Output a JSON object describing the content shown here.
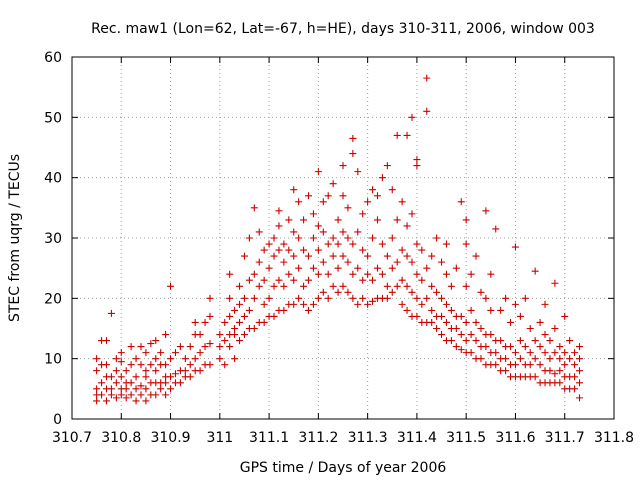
{
  "chart_data": {
    "type": "scatter",
    "title": "Rec. maw1 (Lon=62, Lat=-67, h=HE), days 310-311, 2006, window 003",
    "xlabel": "GPS time / Days of year 2006",
    "ylabel": "STEC from uqrg / TECUs",
    "xlim": [
      310.7,
      311.8
    ],
    "ylim": [
      0,
      60
    ],
    "xticks": [
      "310.7",
      "310.8",
      "310.9",
      "311",
      "311.1",
      "311.2",
      "311.3",
      "311.4",
      "311.5",
      "311.6",
      "311.7",
      "311.8"
    ],
    "yticks": [
      "0",
      "10",
      "20",
      "30",
      "40",
      "50",
      "60"
    ],
    "grid": true,
    "marker": "plus",
    "color": "#cc0000",
    "points": [
      [
        310.75,
        3
      ],
      [
        310.75,
        4
      ],
      [
        310.75,
        5
      ],
      [
        310.75,
        8
      ],
      [
        310.75,
        10
      ],
      [
        310.76,
        4
      ],
      [
        310.76,
        6
      ],
      [
        310.76,
        9
      ],
      [
        310.76,
        13
      ],
      [
        310.77,
        3
      ],
      [
        310.77,
        5
      ],
      [
        310.77,
        7
      ],
      [
        310.77,
        9
      ],
      [
        310.77,
        13
      ],
      [
        310.78,
        4
      ],
      [
        310.78,
        5
      ],
      [
        310.78,
        7
      ],
      [
        310.78,
        17.5
      ],
      [
        310.79,
        3.5
      ],
      [
        310.79,
        6
      ],
      [
        310.79,
        8
      ],
      [
        310.79,
        10
      ],
      [
        310.8,
        4
      ],
      [
        310.8,
        5
      ],
      [
        310.8,
        7
      ],
      [
        310.8,
        9.5
      ],
      [
        310.8,
        11
      ],
      [
        310.81,
        3.5
      ],
      [
        310.81,
        5
      ],
      [
        310.81,
        6
      ],
      [
        310.81,
        8
      ],
      [
        310.82,
        4
      ],
      [
        310.82,
        6
      ],
      [
        310.82,
        9
      ],
      [
        310.82,
        12
      ],
      [
        310.83,
        3
      ],
      [
        310.83,
        5
      ],
      [
        310.83,
        7
      ],
      [
        310.83,
        10
      ],
      [
        310.84,
        4
      ],
      [
        310.84,
        5.5
      ],
      [
        310.84,
        9
      ],
      [
        310.84,
        12
      ],
      [
        310.85,
        3
      ],
      [
        310.85,
        5
      ],
      [
        310.85,
        7
      ],
      [
        310.85,
        8
      ],
      [
        310.85,
        11
      ],
      [
        310.86,
        4
      ],
      [
        310.86,
        6
      ],
      [
        310.86,
        9
      ],
      [
        310.86,
        12.5
      ],
      [
        310.87,
        4
      ],
      [
        310.87,
        6
      ],
      [
        310.87,
        8
      ],
      [
        310.87,
        10
      ],
      [
        310.87,
        13
      ],
      [
        310.88,
        5
      ],
      [
        310.88,
        6
      ],
      [
        310.88,
        9
      ],
      [
        310.88,
        11
      ],
      [
        310.89,
        4
      ],
      [
        310.89,
        6
      ],
      [
        310.89,
        7
      ],
      [
        310.89,
        9
      ],
      [
        310.89,
        14
      ],
      [
        310.9,
        5
      ],
      [
        310.9,
        7
      ],
      [
        310.9,
        10
      ],
      [
        310.9,
        22
      ],
      [
        310.91,
        6
      ],
      [
        310.91,
        7.5
      ],
      [
        310.91,
        11
      ],
      [
        310.92,
        6
      ],
      [
        310.92,
        8
      ],
      [
        310.92,
        12
      ],
      [
        310.93,
        7
      ],
      [
        310.93,
        8
      ],
      [
        310.93,
        10
      ],
      [
        310.94,
        7
      ],
      [
        310.94,
        9
      ],
      [
        310.94,
        12
      ],
      [
        310.95,
        8
      ],
      [
        310.95,
        10
      ],
      [
        310.95,
        14
      ],
      [
        310.95,
        16
      ],
      [
        310.96,
        8
      ],
      [
        310.96,
        11
      ],
      [
        310.96,
        14
      ],
      [
        310.97,
        9
      ],
      [
        310.97,
        12
      ],
      [
        310.97,
        16
      ],
      [
        310.98,
        9
      ],
      [
        310.98,
        12.5
      ],
      [
        310.98,
        17
      ],
      [
        310.98,
        20
      ],
      [
        311.0,
        10
      ],
      [
        311.0,
        12
      ],
      [
        311.0,
        14
      ],
      [
        311.01,
        9
      ],
      [
        311.01,
        13
      ],
      [
        311.01,
        16
      ],
      [
        311.02,
        12
      ],
      [
        311.02,
        14
      ],
      [
        311.02,
        17
      ],
      [
        311.02,
        20
      ],
      [
        311.02,
        24
      ],
      [
        311.03,
        10
      ],
      [
        311.03,
        14
      ],
      [
        311.03,
        15
      ],
      [
        311.03,
        18
      ],
      [
        311.04,
        13
      ],
      [
        311.04,
        16
      ],
      [
        311.04,
        19
      ],
      [
        311.04,
        22
      ],
      [
        311.05,
        14
      ],
      [
        311.05,
        17
      ],
      [
        311.05,
        20
      ],
      [
        311.05,
        27
      ],
      [
        311.06,
        15
      ],
      [
        311.06,
        18
      ],
      [
        311.06,
        23
      ],
      [
        311.06,
        30
      ],
      [
        311.07,
        15
      ],
      [
        311.07,
        20
      ],
      [
        311.07,
        24
      ],
      [
        311.07,
        35
      ],
      [
        311.08,
        16
      ],
      [
        311.08,
        22
      ],
      [
        311.08,
        26
      ],
      [
        311.08,
        31
      ],
      [
        311.09,
        16
      ],
      [
        311.09,
        19
      ],
      [
        311.09,
        23
      ],
      [
        311.09,
        28
      ],
      [
        311.1,
        17
      ],
      [
        311.1,
        20
      ],
      [
        311.1,
        25
      ],
      [
        311.1,
        29
      ],
      [
        311.11,
        17
      ],
      [
        311.11,
        22
      ],
      [
        311.11,
        27
      ],
      [
        311.11,
        30
      ],
      [
        311.12,
        18
      ],
      [
        311.12,
        23
      ],
      [
        311.12,
        28
      ],
      [
        311.12,
        32
      ],
      [
        311.12,
        34.5
      ],
      [
        311.13,
        18
      ],
      [
        311.13,
        22
      ],
      [
        311.13,
        26
      ],
      [
        311.13,
        29
      ],
      [
        311.14,
        19
      ],
      [
        311.14,
        24
      ],
      [
        311.14,
        28
      ],
      [
        311.14,
        33
      ],
      [
        311.15,
        19
      ],
      [
        311.15,
        23
      ],
      [
        311.15,
        27
      ],
      [
        311.15,
        31
      ],
      [
        311.15,
        38
      ],
      [
        311.16,
        20
      ],
      [
        311.16,
        25
      ],
      [
        311.16,
        30
      ],
      [
        311.16,
        36
      ],
      [
        311.17,
        19
      ],
      [
        311.17,
        22
      ],
      [
        311.17,
        28
      ],
      [
        311.17,
        33
      ],
      [
        311.18,
        18
      ],
      [
        311.18,
        23
      ],
      [
        311.18,
        27
      ],
      [
        311.18,
        37
      ],
      [
        311.19,
        19
      ],
      [
        311.19,
        25
      ],
      [
        311.19,
        30
      ],
      [
        311.19,
        34
      ],
      [
        311.2,
        20
      ],
      [
        311.2,
        24
      ],
      [
        311.2,
        28
      ],
      [
        311.2,
        32
      ],
      [
        311.2,
        41
      ],
      [
        311.21,
        21
      ],
      [
        311.21,
        26
      ],
      [
        311.21,
        31
      ],
      [
        311.21,
        36
      ],
      [
        311.22,
        20
      ],
      [
        311.22,
        24
      ],
      [
        311.22,
        29
      ],
      [
        311.22,
        37
      ],
      [
        311.23,
        22
      ],
      [
        311.23,
        27
      ],
      [
        311.23,
        30
      ],
      [
        311.23,
        39
      ],
      [
        311.24,
        21
      ],
      [
        311.24,
        25
      ],
      [
        311.24,
        29
      ],
      [
        311.24,
        33
      ],
      [
        311.25,
        22
      ],
      [
        311.25,
        27
      ],
      [
        311.25,
        31
      ],
      [
        311.25,
        37
      ],
      [
        311.25,
        42
      ],
      [
        311.26,
        21
      ],
      [
        311.26,
        26
      ],
      [
        311.26,
        30
      ],
      [
        311.26,
        35
      ],
      [
        311.27,
        20
      ],
      [
        311.27,
        24
      ],
      [
        311.27,
        29
      ],
      [
        311.27,
        44
      ],
      [
        311.27,
        46.5
      ],
      [
        311.28,
        19
      ],
      [
        311.28,
        25
      ],
      [
        311.28,
        31
      ],
      [
        311.28,
        41
      ],
      [
        311.29,
        20
      ],
      [
        311.29,
        23
      ],
      [
        311.29,
        28
      ],
      [
        311.29,
        34
      ],
      [
        311.3,
        19
      ],
      [
        311.3,
        24
      ],
      [
        311.3,
        27
      ],
      [
        311.3,
        36
      ],
      [
        311.31,
        19.5
      ],
      [
        311.31,
        23
      ],
      [
        311.31,
        30
      ],
      [
        311.31,
        38
      ],
      [
        311.32,
        20
      ],
      [
        311.32,
        25
      ],
      [
        311.32,
        33
      ],
      [
        311.32,
        37
      ],
      [
        311.33,
        20
      ],
      [
        311.33,
        24
      ],
      [
        311.33,
        29
      ],
      [
        311.33,
        40
      ],
      [
        311.34,
        20
      ],
      [
        311.34,
        22
      ],
      [
        311.34,
        27
      ],
      [
        311.34,
        42
      ],
      [
        311.35,
        21
      ],
      [
        311.35,
        25
      ],
      [
        311.35,
        30
      ],
      [
        311.35,
        38
      ],
      [
        311.36,
        22
      ],
      [
        311.36,
        26
      ],
      [
        311.36,
        33
      ],
      [
        311.36,
        47
      ],
      [
        311.37,
        19
      ],
      [
        311.37,
        23
      ],
      [
        311.37,
        28
      ],
      [
        311.37,
        36
      ],
      [
        311.38,
        18
      ],
      [
        311.38,
        22
      ],
      [
        311.38,
        27
      ],
      [
        311.38,
        32
      ],
      [
        311.38,
        47
      ],
      [
        311.39,
        17
      ],
      [
        311.39,
        21
      ],
      [
        311.39,
        26
      ],
      [
        311.39,
        34
      ],
      [
        311.39,
        50
      ],
      [
        311.4,
        17
      ],
      [
        311.4,
        20
      ],
      [
        311.4,
        24
      ],
      [
        311.4,
        29
      ],
      [
        311.4,
        42
      ],
      [
        311.4,
        43
      ],
      [
        311.41,
        16
      ],
      [
        311.41,
        19
      ],
      [
        311.41,
        23
      ],
      [
        311.41,
        28
      ],
      [
        311.42,
        16
      ],
      [
        311.42,
        20
      ],
      [
        311.42,
        25
      ],
      [
        311.42,
        51
      ],
      [
        311.42,
        56.5
      ],
      [
        311.43,
        16
      ],
      [
        311.43,
        18
      ],
      [
        311.43,
        22
      ],
      [
        311.43,
        27
      ],
      [
        311.44,
        15
      ],
      [
        311.44,
        17
      ],
      [
        311.44,
        21
      ],
      [
        311.44,
        30
      ],
      [
        311.45,
        14
      ],
      [
        311.45,
        17
      ],
      [
        311.45,
        20
      ],
      [
        311.45,
        26
      ],
      [
        311.46,
        13
      ],
      [
        311.46,
        16
      ],
      [
        311.46,
        19
      ],
      [
        311.46,
        24
      ],
      [
        311.46,
        29
      ],
      [
        311.47,
        13
      ],
      [
        311.47,
        15
      ],
      [
        311.47,
        18
      ],
      [
        311.47,
        22
      ],
      [
        311.48,
        12
      ],
      [
        311.48,
        15
      ],
      [
        311.48,
        17
      ],
      [
        311.48,
        25
      ],
      [
        311.49,
        11.5
      ],
      [
        311.49,
        14
      ],
      [
        311.49,
        17
      ],
      [
        311.49,
        36
      ],
      [
        311.5,
        11
      ],
      [
        311.5,
        13
      ],
      [
        311.5,
        16
      ],
      [
        311.5,
        22
      ],
      [
        311.5,
        29
      ],
      [
        311.5,
        33
      ],
      [
        311.51,
        11
      ],
      [
        311.51,
        14
      ],
      [
        311.51,
        18
      ],
      [
        311.51,
        24
      ],
      [
        311.52,
        10
      ],
      [
        311.52,
        13
      ],
      [
        311.52,
        16
      ],
      [
        311.52,
        27
      ],
      [
        311.53,
        10
      ],
      [
        311.53,
        12
      ],
      [
        311.53,
        15
      ],
      [
        311.53,
        21
      ],
      [
        311.54,
        9
      ],
      [
        311.54,
        12
      ],
      [
        311.54,
        14
      ],
      [
        311.54,
        20
      ],
      [
        311.54,
        34.5
      ],
      [
        311.55,
        9
      ],
      [
        311.55,
        11
      ],
      [
        311.55,
        14
      ],
      [
        311.55,
        18
      ],
      [
        311.55,
        24
      ],
      [
        311.56,
        9
      ],
      [
        311.56,
        11
      ],
      [
        311.56,
        13
      ],
      [
        311.56,
        31.5
      ],
      [
        311.57,
        8
      ],
      [
        311.57,
        10
      ],
      [
        311.57,
        13
      ],
      [
        311.57,
        18
      ],
      [
        311.58,
        8
      ],
      [
        311.58,
        10
      ],
      [
        311.58,
        12
      ],
      [
        311.58,
        20
      ],
      [
        311.59,
        7
      ],
      [
        311.59,
        9
      ],
      [
        311.59,
        12
      ],
      [
        311.59,
        16
      ],
      [
        311.6,
        7
      ],
      [
        311.6,
        9
      ],
      [
        311.6,
        11
      ],
      [
        311.6,
        19
      ],
      [
        311.6,
        28.5
      ],
      [
        311.61,
        7
      ],
      [
        311.61,
        10
      ],
      [
        311.61,
        13
      ],
      [
        311.61,
        17
      ],
      [
        311.62,
        7
      ],
      [
        311.62,
        9
      ],
      [
        311.62,
        12
      ],
      [
        311.62,
        20
      ],
      [
        311.63,
        7
      ],
      [
        311.63,
        9
      ],
      [
        311.63,
        11
      ],
      [
        311.63,
        15
      ],
      [
        311.64,
        7
      ],
      [
        311.64,
        10
      ],
      [
        311.64,
        13
      ],
      [
        311.64,
        24.5
      ],
      [
        311.65,
        6
      ],
      [
        311.65,
        9
      ],
      [
        311.65,
        12
      ],
      [
        311.65,
        16
      ],
      [
        311.66,
        6
      ],
      [
        311.66,
        8
      ],
      [
        311.66,
        11
      ],
      [
        311.66,
        14
      ],
      [
        311.66,
        19
      ],
      [
        311.67,
        6
      ],
      [
        311.67,
        8
      ],
      [
        311.67,
        10
      ],
      [
        311.67,
        13
      ],
      [
        311.68,
        6
      ],
      [
        311.68,
        7.5
      ],
      [
        311.68,
        11
      ],
      [
        311.68,
        15
      ],
      [
        311.68,
        22.5
      ],
      [
        311.69,
        6
      ],
      [
        311.69,
        8
      ],
      [
        311.69,
        10
      ],
      [
        311.69,
        12
      ],
      [
        311.7,
        5
      ],
      [
        311.7,
        7
      ],
      [
        311.7,
        9
      ],
      [
        311.7,
        11
      ],
      [
        311.7,
        17
      ],
      [
        311.71,
        5
      ],
      [
        311.71,
        7
      ],
      [
        311.71,
        10
      ],
      [
        311.71,
        13
      ],
      [
        311.72,
        5
      ],
      [
        311.72,
        7
      ],
      [
        311.72,
        9
      ],
      [
        311.72,
        11
      ],
      [
        311.73,
        3.5
      ],
      [
        311.73,
        6
      ],
      [
        311.73,
        8
      ],
      [
        311.73,
        10
      ],
      [
        311.73,
        12
      ]
    ]
  }
}
